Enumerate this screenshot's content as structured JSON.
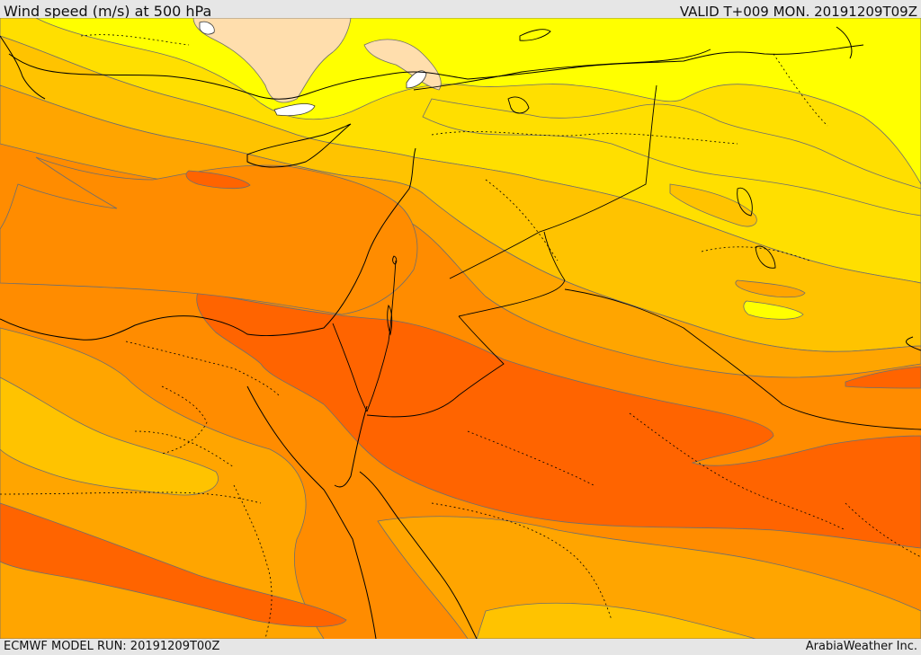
{
  "header": {
    "title": "Wind speed (m/s) at 500 hPa",
    "valid_time": "VALID T+009 MON. 20191209T09Z"
  },
  "footer": {
    "model_run": "ECMWF MODEL RUN: 20191209T00Z",
    "credit": "ArabiaWeather Inc."
  },
  "palette": {
    "lightest": "#ffdead",
    "yellow": "#ffff00",
    "gold": "#ffdf00",
    "amber": "#ffc300",
    "light_orange": "#ffa500",
    "orange": "#ff8c00",
    "dark_orange": "#ff6400",
    "land_outline": "#000000",
    "contour_line": "#6e6e6e"
  }
}
